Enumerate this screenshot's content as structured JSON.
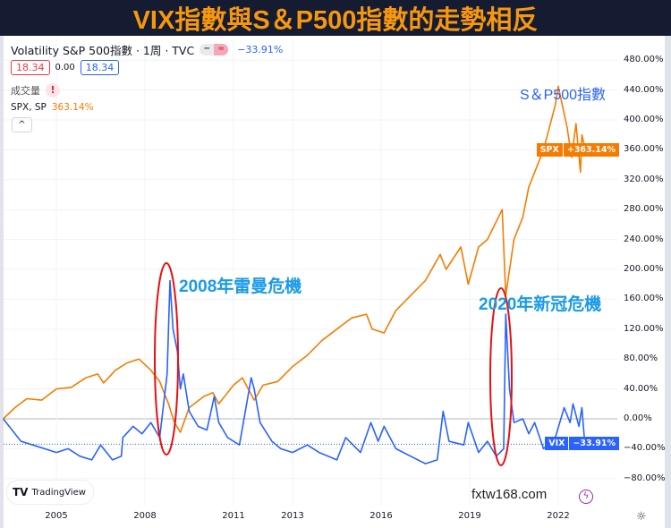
{
  "banner_title": "VIX指數與S＆P500指數的走勢相反",
  "legend": {
    "main_title": "Volatility S&P 500指數 · 1周 · TVC",
    "main_change": "−33.91%",
    "sell_value": "18.34",
    "spread": "0.00",
    "buy_value": "18.34",
    "volume_label": "成交量",
    "volume_warning": "!",
    "compare_name": "SPX, SP",
    "compare_value": "363.14%",
    "collapse_icon": "^"
  },
  "annotations": {
    "spx": "S＆P500指數",
    "crisis_2008": "2008年雷曼危機",
    "crisis_2020": "2020年新冠危機"
  },
  "watermark": "fxtw168.com",
  "tradingview_label": "TradingView",
  "price_tags": {
    "spx_symbol": "SPX",
    "spx_value": "+363.14%",
    "vix_symbol": "VIX",
    "vix_value": "−33.91%"
  },
  "colors": {
    "spx": "#f57c00",
    "vix": "#2962ff",
    "annotation": "#1a9ae8",
    "highlight": "#e81010",
    "banner_bg": "#151b30",
    "banner_text": "#f7970f"
  },
  "chart_data": {
    "type": "line",
    "y_unit": "%",
    "ylim": [
      -80,
      480
    ],
    "y_ticks": [
      "480.00%",
      "440.00%",
      "400.00%",
      "360.00%",
      "320.00%",
      "280.00%",
      "240.00%",
      "200.00%",
      "160.00%",
      "120.00%",
      "80.00%",
      "40.00%",
      "0.00%",
      "−40.00%",
      "−80.00%"
    ],
    "x_ticks": [
      "2005",
      "2008",
      "2011",
      "2013",
      "2016",
      "2019",
      "2022"
    ],
    "x_tick_years": [
      2005,
      2008,
      2011,
      2013,
      2016,
      2019,
      2022
    ],
    "xlim": [
      2003.2,
      2022.9
    ],
    "grid": true,
    "series": [
      {
        "name": "SPX",
        "color": "#f57c00",
        "x": [
          2003.2,
          2003.6,
          2004.0,
          2004.5,
          2005.0,
          2005.5,
          2006.0,
          2006.4,
          2006.6,
          2007.0,
          2007.4,
          2007.8,
          2008.2,
          2008.5,
          2008.8,
          2009.0,
          2009.2,
          2009.5,
          2010.0,
          2010.3,
          2010.5,
          2011.0,
          2011.3,
          2011.7,
          2012.0,
          2012.5,
          2013.0,
          2013.5,
          2014.0,
          2014.5,
          2015.0,
          2015.5,
          2015.7,
          2016.1,
          2016.5,
          2017.0,
          2017.5,
          2018.0,
          2018.2,
          2018.7,
          2018.95,
          2019.3,
          2019.6,
          2020.1,
          2020.22,
          2020.5,
          2020.8,
          2021.0,
          2021.5,
          2021.9,
          2022.0,
          2022.3,
          2022.45,
          2022.6,
          2022.75,
          2022.8,
          2022.9
        ],
        "values": [
          0,
          15,
          27,
          25,
          40,
          42,
          55,
          60,
          48,
          65,
          75,
          80,
          65,
          50,
          20,
          -5,
          -18,
          15,
          30,
          35,
          20,
          45,
          55,
          25,
          45,
          50,
          70,
          85,
          105,
          120,
          135,
          140,
          120,
          115,
          145,
          165,
          185,
          220,
          200,
          230,
          180,
          230,
          240,
          280,
          165,
          240,
          270,
          310,
          360,
          420,
          445,
          390,
          350,
          395,
          330,
          380,
          363.14
        ]
      },
      {
        "name": "VIX",
        "color": "#2962ff",
        "x": [
          2003.2,
          2003.5,
          2003.8,
          2004.2,
          2004.6,
          2005.0,
          2005.4,
          2005.8,
          2006.2,
          2006.5,
          2006.9,
          2007.2,
          2007.25,
          2007.6,
          2007.9,
          2008.2,
          2008.5,
          2008.75,
          2008.85,
          2008.95,
          2009.1,
          2009.2,
          2009.3,
          2009.5,
          2009.8,
          2010.1,
          2010.35,
          2010.5,
          2010.8,
          2011.2,
          2011.6,
          2011.7,
          2011.9,
          2012.3,
          2012.6,
          2013.0,
          2013.5,
          2013.9,
          2014.5,
          2014.8,
          2015.3,
          2015.65,
          2015.9,
          2016.1,
          2016.5,
          2017.0,
          2017.5,
          2017.9,
          2018.1,
          2018.3,
          2018.8,
          2018.95,
          2019.3,
          2019.6,
          2019.9,
          2020.15,
          2020.22,
          2020.35,
          2020.5,
          2020.8,
          2021.0,
          2021.2,
          2021.5,
          2021.9,
          2022.2,
          2022.4,
          2022.5,
          2022.7,
          2022.8,
          2022.9
        ],
        "values": [
          0,
          -15,
          -30,
          -35,
          -40,
          -45,
          -40,
          -50,
          -55,
          -35,
          -55,
          -50,
          -25,
          -10,
          -20,
          -5,
          -25,
          60,
          185,
          120,
          90,
          40,
          60,
          10,
          -10,
          -15,
          30,
          -5,
          -25,
          -35,
          55,
          40,
          -5,
          -30,
          -40,
          -45,
          -35,
          -45,
          -55,
          -25,
          -45,
          -5,
          -30,
          -10,
          -40,
          -50,
          -60,
          -55,
          10,
          -30,
          -35,
          -5,
          -45,
          -30,
          -50,
          -40,
          140,
          40,
          -5,
          0,
          -20,
          -5,
          -40,
          -25,
          15,
          -5,
          20,
          -10,
          15,
          -33.91
        ]
      }
    ]
  }
}
